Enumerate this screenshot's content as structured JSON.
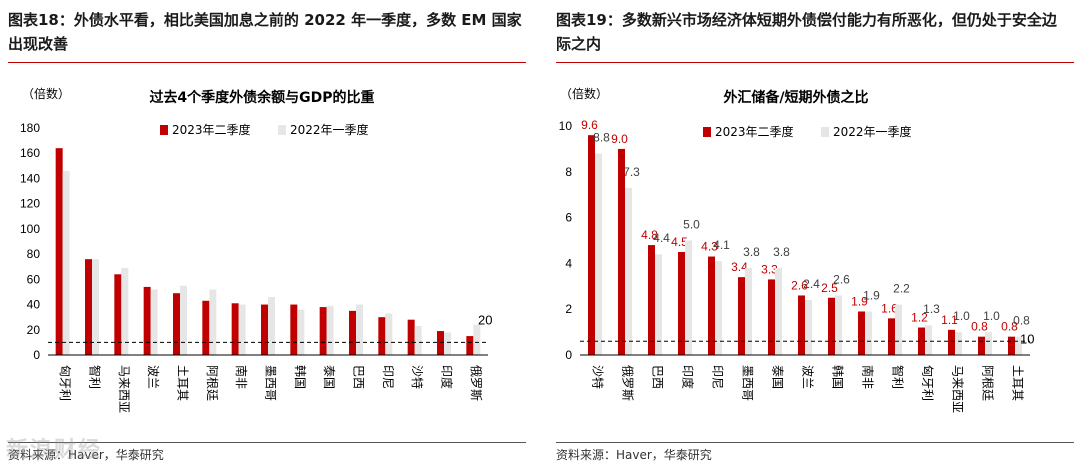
{
  "colors": {
    "current": "#c00000",
    "previous": "#e6e6e6",
    "axis": "#000000",
    "text_red": "#c00000",
    "text_dark": "#404040",
    "dashed": "#000000"
  },
  "left": {
    "heading": "图表18：外债水平看，相比美国加息之前的 2022 年一季度，多数 EM 国家出现改善",
    "source": "资料来源：Haver，华泰研究",
    "watermark": "新浪财经"
  },
  "right": {
    "heading": "图表19：多数新兴市场经济体短期外债偿付能力有所恶化，但仍处于安全边际之内",
    "source": "资料来源：Haver，华泰研究"
  },
  "chart_data": [
    {
      "type": "bar",
      "title": "过去4个季度外债余额与GDP的比重",
      "ylabel": "（倍数）",
      "ylim": [
        0,
        180
      ],
      "yticks": [
        0,
        20,
        40,
        60,
        80,
        100,
        120,
        140,
        160,
        180
      ],
      "categories": [
        "匈牙利",
        "智利",
        "马来西亚",
        "波兰",
        "土耳其",
        "阿根廷",
        "南非",
        "墨西哥",
        "韩国",
        "泰国",
        "巴西",
        "印尼",
        "沙特",
        "印度",
        "俄罗斯"
      ],
      "series": [
        {
          "name": "2023年二季度",
          "values": [
            164,
            76,
            64,
            54,
            49,
            43,
            41,
            40,
            40,
            38,
            35,
            30,
            28,
            19,
            15
          ]
        },
        {
          "name": "2022年一季度",
          "values": [
            146,
            76,
            69,
            52,
            55,
            52,
            40,
            46,
            36,
            39,
            40,
            33,
            23,
            18,
            24
          ]
        }
      ],
      "reference_line": {
        "value": 10,
        "label": "20"
      },
      "legend": "top"
    },
    {
      "type": "bar",
      "title": "外汇储备/短期外债之比",
      "ylabel": "（倍数）",
      "ylim": [
        0,
        10
      ],
      "yticks": [
        0,
        2,
        4,
        6,
        8,
        10
      ],
      "categories": [
        "沙特",
        "俄罗斯",
        "巴西",
        "印度",
        "印尼",
        "墨西哥",
        "泰国",
        "波兰",
        "韩国",
        "南非",
        "智利",
        "匈牙利",
        "马来西亚",
        "阿根廷",
        "土耳其"
      ],
      "series": [
        {
          "name": "2023年二季度",
          "values": [
            9.6,
            9.0,
            4.8,
            4.5,
            4.3,
            3.4,
            3.3,
            2.6,
            2.5,
            1.9,
            1.6,
            1.2,
            1.1,
            0.8,
            0.8
          ]
        },
        {
          "name": "2022年一季度",
          "values": [
            8.8,
            7.3,
            4.4,
            5.0,
            4.1,
            3.8,
            3.8,
            2.4,
            2.6,
            1.9,
            2.2,
            1.3,
            1.0,
            1.0,
            0.8
          ]
        }
      ],
      "reference_line": {
        "value": 0.6,
        "label": "10"
      },
      "legend": "top"
    }
  ]
}
